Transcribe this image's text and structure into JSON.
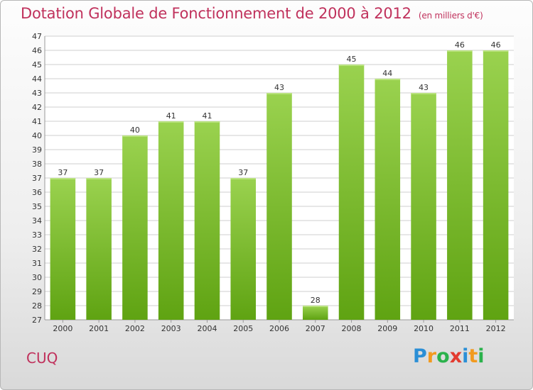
{
  "title": "Dotation Globale de Fonctionnement de 2000 à 2012",
  "unit": "(en milliers d'€)",
  "commune": "CUQ",
  "logo": {
    "letters": [
      "P",
      "r",
      "o",
      "x",
      "i",
      "t",
      "i"
    ],
    "colors": [
      "#2b8fd6",
      "#f29a1f",
      "#2bb24c",
      "#e33b2f",
      "#2b8fd6",
      "#f29a1f",
      "#2bb24c"
    ]
  },
  "colors": {
    "title": "#c0315c",
    "bar_top": "#9ad24f",
    "bar_bottom": "#5fa312",
    "grid": "#cfcfcf",
    "plot_bg": "#ffffff"
  },
  "chart_data": {
    "type": "bar",
    "categories": [
      "2000",
      "2001",
      "2002",
      "2003",
      "2004",
      "2005",
      "2006",
      "2007",
      "2008",
      "2009",
      "2010",
      "2011",
      "2012"
    ],
    "values": [
      37,
      37,
      40,
      41,
      41,
      37,
      43,
      28,
      45,
      44,
      43,
      46,
      46
    ],
    "ylim": [
      27,
      47
    ],
    "yticks": [
      27,
      28,
      29,
      30,
      31,
      32,
      33,
      34,
      35,
      36,
      37,
      38,
      39,
      40,
      41,
      42,
      43,
      44,
      45,
      46,
      47
    ],
    "grid": true,
    "data_labels": true
  }
}
